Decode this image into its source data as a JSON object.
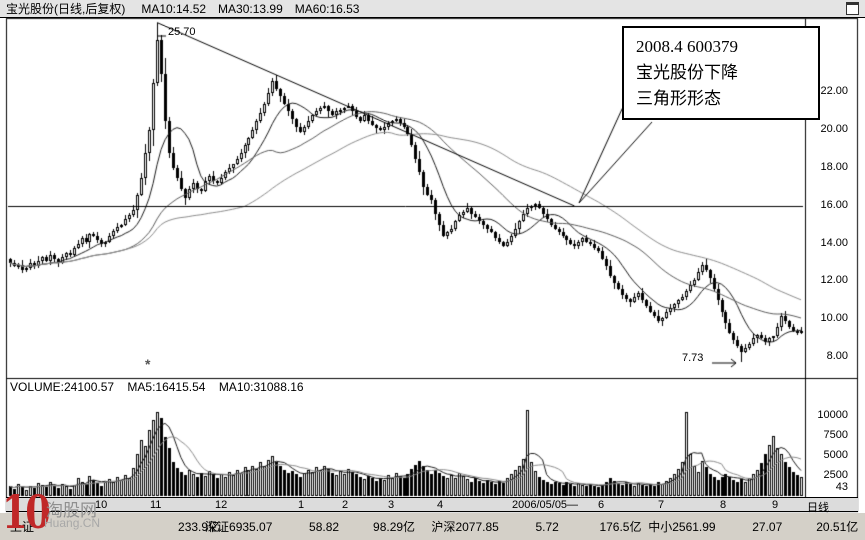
{
  "colors": {
    "up_candle": "#ffffff",
    "down_candle": "#000000",
    "line": "#000000",
    "ma10": "#1a1a1a",
    "ma30": "#5a5a5a",
    "ma60": "#8a8a8a",
    "vol_ma5": "#1a1a1a",
    "vol_ma10": "#8a8a8a",
    "watermark_red": "#c02828",
    "panel_bg": "#ffffff",
    "chrome_bg": "#d4d0c8"
  },
  "header": {
    "title": "宝光股份(日线,后复权)",
    "ma10": "MA10:14.52",
    "ma30": "MA30:13.99",
    "ma60": "MA60:16.53"
  },
  "annotation": {
    "line1": "2008.4  600379",
    "line2": "宝光股份下降",
    "line3": "三角形形态"
  },
  "overlays": {
    "peak_label": "25.70",
    "trough_label": "7.73",
    "event_marker": "*"
  },
  "price_axis": {
    "labels": [
      "22.00",
      "20.00",
      "18.00",
      "16.00",
      "14.00",
      "12.00",
      "10.00",
      "8.00"
    ]
  },
  "volume_axis": {
    "labels": [
      "10000",
      "7500",
      "5000",
      "2500"
    ],
    "bars_count": "43"
  },
  "volume_header": {
    "volume": "VOLUME:24100.57",
    "ma5": "MA5:16415.54",
    "ma10": "MA10:31088.16"
  },
  "time_axis": {
    "labels": [
      "10",
      "11",
      "12",
      "1",
      "2",
      "3",
      "4",
      "2006/05/05—",
      "6",
      "7",
      "8",
      "9"
    ],
    "period": "日线"
  },
  "status_bar": {
    "segments": [
      {
        "name": "上证",
        "price": "",
        "change": "",
        "amount": "233.9亿"
      },
      {
        "name": "深证",
        "price": "6935.07",
        "change": "58.82",
        "amount": "98.29亿"
      },
      {
        "name": "沪深",
        "price": "2077.85",
        "change": "5.72",
        "amount": "176.5亿"
      },
      {
        "name": "中小",
        "price": "2561.99",
        "change": "27.07",
        "amount": "20.51亿"
      }
    ]
  },
  "watermark": {
    "big": "10",
    "site": "淘股网",
    "url": "Huang.CN"
  },
  "chart_data": {
    "type": "candlestick+volume",
    "title": "宝光股份(日线,后复权)",
    "price_range": [
      6.9,
      26.1
    ],
    "volume_range": [
      0,
      12000
    ],
    "support_level": 16.0,
    "trendline": {
      "from_index": 37,
      "from_price": 25.7,
      "to_index": 142,
      "to_price": 16.0
    },
    "peak": {
      "index": 37,
      "price": 25.7
    },
    "trough": {
      "index": 184,
      "price": 7.73
    },
    "first_open": 13.2,
    "ma_periods": [
      10,
      30,
      60
    ],
    "vol_ma_periods": [
      5,
      10
    ],
    "wick_pattern": [
      0.12,
      0.35,
      0.2,
      0.5,
      0.15,
      0.4,
      0.25,
      0.55,
      0.1,
      0.3,
      0.45,
      0.2
    ],
    "closes": [
      13.0,
      12.8,
      12.9,
      12.6,
      12.7,
      13.0,
      12.8,
      13.1,
      13.3,
      13.1,
      13.4,
      13.2,
      13.0,
      13.3,
      13.5,
      13.4,
      13.8,
      14.0,
      14.3,
      14.1,
      14.5,
      14.4,
      14.2,
      14.0,
      14.1,
      14.4,
      14.7,
      14.9,
      15.0,
      15.3,
      15.5,
      15.8,
      16.6,
      17.5,
      18.8,
      20.0,
      22.5,
      24.8,
      23.0,
      20.5,
      18.8,
      18.0,
      17.5,
      16.9,
      16.4,
      16.9,
      17.2,
      16.9,
      16.8,
      17.3,
      17.6,
      17.3,
      17.2,
      17.5,
      17.8,
      18.0,
      18.2,
      18.5,
      18.8,
      19.2,
      19.6,
      20.0,
      20.5,
      20.9,
      21.4,
      22.0,
      22.6,
      22.2,
      21.8,
      21.4,
      21.0,
      20.6,
      20.2,
      19.9,
      20.2,
      20.5,
      20.8,
      21.0,
      21.2,
      21.3,
      21.0,
      20.8,
      21.0,
      21.1,
      21.2,
      21.3,
      21.0,
      20.7,
      20.5,
      20.8,
      20.5,
      20.3,
      20.1,
      20.0,
      20.2,
      20.4,
      20.5,
      20.6,
      20.4,
      20.2,
      19.8,
      19.2,
      18.5,
      17.8,
      17.0,
      16.6,
      16.3,
      15.6,
      15.0,
      14.4,
      14.6,
      14.8,
      15.2,
      15.5,
      15.7,
      15.9,
      15.6,
      15.4,
      15.2,
      15.0,
      14.8,
      14.6,
      14.3,
      14.1,
      13.9,
      14.1,
      14.4,
      14.8,
      15.2,
      15.6,
      15.9,
      16.0,
      16.1,
      15.9,
      15.6,
      15.3,
      15.0,
      14.8,
      14.6,
      14.4,
      14.2,
      14.0,
      13.9,
      14.1,
      14.3,
      14.1,
      14.0,
      13.8,
      13.6,
      13.2,
      12.8,
      12.3,
      11.9,
      11.6,
      11.3,
      11.1,
      10.9,
      11.2,
      11.4,
      11.0,
      10.7,
      10.4,
      10.2,
      9.9,
      10.1,
      10.4,
      10.6,
      10.8,
      11.0,
      11.2,
      11.5,
      11.8,
      12.1,
      12.5,
      12.9,
      12.6,
      12.2,
      11.6,
      11.0,
      10.4,
      9.8,
      9.3,
      8.9,
      8.6,
      8.3,
      8.5,
      8.7,
      9.0,
      9.2,
      9.0,
      8.8,
      9.0,
      9.1,
      9.6,
      10.2,
      9.9,
      9.6,
      9.4,
      9.3,
      9.4
    ],
    "volumes": [
      1200,
      900,
      1500,
      1100,
      800,
      1300,
      1000,
      1600,
      1400,
      1100,
      1800,
      1300,
      1000,
      1500,
      1200,
      900,
      1400,
      2200,
      1800,
      1500,
      2500,
      2000,
      1600,
      1300,
      1800,
      2100,
      1700,
      2400,
      2000,
      2600,
      2300,
      3500,
      5200,
      7000,
      6200,
      8200,
      9500,
      10500,
      9800,
      7400,
      6000,
      4200,
      3500,
      3000,
      2600,
      3200,
      2800,
      2400,
      2900,
      2500,
      3100,
      2700,
      2300,
      2800,
      2400,
      3000,
      2600,
      3300,
      2900,
      3600,
      3200,
      3800,
      3400,
      4200,
      3700,
      4500,
      5000,
      4300,
      3800,
      3300,
      2900,
      3100,
      2700,
      2400,
      2900,
      3300,
      3000,
      3600,
      3200,
      3800,
      3400,
      2900,
      2600,
      3100,
      2800,
      3400,
      3000,
      2700,
      2400,
      2100,
      2500,
      2200,
      1900,
      2300,
      2000,
      2600,
      2300,
      2900,
      2500,
      2200,
      2800,
      3400,
      3900,
      4400,
      3800,
      3200,
      2800,
      3300,
      2900,
      2500,
      2200,
      2600,
      2300,
      2900,
      2500,
      2100,
      1800,
      2200,
      1900,
      1600,
      2000,
      1700,
      1500,
      1900,
      1600,
      2300,
      2700,
      3200,
      3800,
      4600,
      10800,
      4200,
      3100,
      2400,
      2000,
      1700,
      1500,
      1800,
      1600,
      1400,
      1700,
      1500,
      1300,
      1600,
      1400,
      1200,
      1500,
      1300,
      1100,
      1400,
      1800,
      2200,
      1900,
      1600,
      1400,
      1700,
      1500,
      1300,
      1600,
      1400,
      1200,
      1500,
      1300,
      1700,
      1500,
      1900,
      2300,
      2800,
      3400,
      4200,
      10500,
      5200,
      3800,
      3000,
      4400,
      3600,
      2800,
      2400,
      2000,
      2400,
      2800,
      2400,
      2000,
      1700,
      2100,
      1800,
      2300,
      2700,
      3300,
      4100,
      5200,
      6400,
      7500,
      6000,
      5200,
      4300,
      3600,
      3000,
      2600,
      2400
    ]
  }
}
